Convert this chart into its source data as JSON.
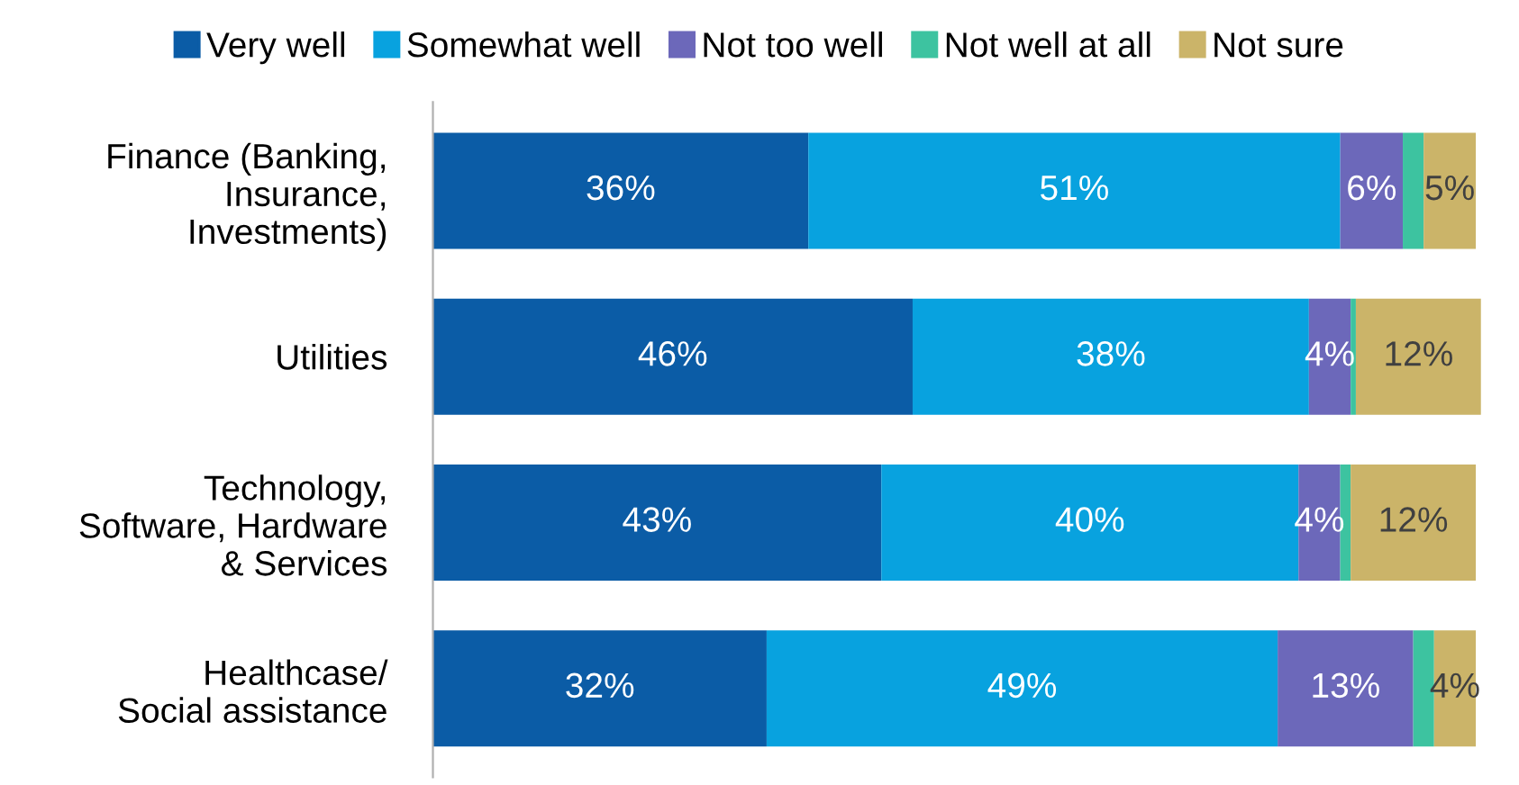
{
  "chart_data": {
    "type": "bar",
    "orientation": "horizontal",
    "stacked": true,
    "legend": "top",
    "categories": [
      "Finance (Banking,\nInsurance,\nInvestments)",
      "Utilities",
      "Technology,\nSoftware, Hardware\n& Services",
      "Healthcase/\nSocial assistance"
    ],
    "series": [
      {
        "name": "Very well",
        "color": "#0b5ca6",
        "values": [
          36,
          46,
          43,
          32
        ],
        "value_labels": [
          "36%",
          "46%",
          "43%",
          "32%"
        ]
      },
      {
        "name": "Somewhat well",
        "color": "#08a2df",
        "values": [
          51,
          38,
          40,
          49
        ],
        "value_labels": [
          "51%",
          "38%",
          "40%",
          "49%"
        ]
      },
      {
        "name": "Not too well",
        "color": "#6c68ba",
        "values": [
          6,
          4,
          4,
          13
        ],
        "value_labels": [
          "6%",
          "4%",
          "4%",
          "13%"
        ]
      },
      {
        "name": "Not well at all",
        "color": "#3dc3a0",
        "values": [
          2,
          0.5,
          1,
          2
        ],
        "value_labels": [
          null,
          null,
          null,
          null
        ]
      },
      {
        "name": "Not sure",
        "color": "#cbb469",
        "values": [
          5,
          12,
          12,
          4
        ],
        "value_labels": [
          "5%",
          "12%",
          "12%",
          "4%"
        ]
      }
    ]
  }
}
